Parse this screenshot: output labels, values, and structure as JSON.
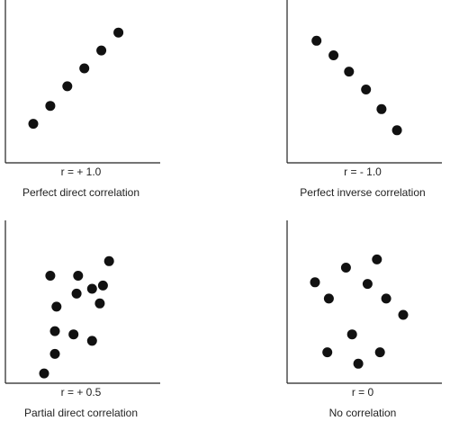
{
  "chart_data": [
    {
      "type": "scatter",
      "r_label": "r = + 1.0",
      "caption": "Perfect direct correlation",
      "xlim": [
        0,
        10
      ],
      "ylim": [
        0,
        10
      ],
      "points": [
        {
          "x": 1.8,
          "y": 2.4
        },
        {
          "x": 2.9,
          "y": 3.5
        },
        {
          "x": 4.0,
          "y": 4.7
        },
        {
          "x": 5.1,
          "y": 5.8
        },
        {
          "x": 6.2,
          "y": 6.9
        },
        {
          "x": 7.3,
          "y": 8.0
        }
      ]
    },
    {
      "type": "scatter",
      "r_label": "r = - 1.0",
      "caption": "Perfect inverse correlation",
      "xlim": [
        0,
        10
      ],
      "ylim": [
        0,
        10
      ],
      "points": [
        {
          "x": 1.9,
          "y": 7.5
        },
        {
          "x": 3.0,
          "y": 6.6
        },
        {
          "x": 4.0,
          "y": 5.6
        },
        {
          "x": 5.1,
          "y": 4.5
        },
        {
          "x": 6.1,
          "y": 3.3
        },
        {
          "x": 7.1,
          "y": 2.0
        }
      ]
    },
    {
      "type": "scatter",
      "r_label": "r = + 0.5",
      "caption": "Partial direct correlation",
      "xlim": [
        0,
        10
      ],
      "ylim": [
        0,
        10
      ],
      "points": [
        {
          "x": 2.5,
          "y": 0.6
        },
        {
          "x": 3.2,
          "y": 1.8
        },
        {
          "x": 3.2,
          "y": 3.2
        },
        {
          "x": 3.3,
          "y": 4.7
        },
        {
          "x": 2.9,
          "y": 6.6
        },
        {
          "x": 4.4,
          "y": 3.0
        },
        {
          "x": 4.6,
          "y": 5.5
        },
        {
          "x": 4.7,
          "y": 6.6
        },
        {
          "x": 5.6,
          "y": 2.6
        },
        {
          "x": 5.6,
          "y": 5.8
        },
        {
          "x": 6.1,
          "y": 4.9
        },
        {
          "x": 6.3,
          "y": 6.0
        },
        {
          "x": 6.7,
          "y": 7.5
        }
      ]
    },
    {
      "type": "scatter",
      "r_label": "r = 0",
      "caption": "No correlation",
      "xlim": [
        0,
        10
      ],
      "ylim": [
        0,
        10
      ],
      "points": [
        {
          "x": 1.8,
          "y": 6.2
        },
        {
          "x": 2.7,
          "y": 5.2
        },
        {
          "x": 3.8,
          "y": 7.1
        },
        {
          "x": 5.2,
          "y": 6.1
        },
        {
          "x": 5.8,
          "y": 7.6
        },
        {
          "x": 6.4,
          "y": 5.2
        },
        {
          "x": 7.5,
          "y": 4.2
        },
        {
          "x": 2.6,
          "y": 1.9
        },
        {
          "x": 4.2,
          "y": 3.0
        },
        {
          "x": 4.6,
          "y": 1.2
        },
        {
          "x": 6.0,
          "y": 1.9
        }
      ]
    }
  ]
}
